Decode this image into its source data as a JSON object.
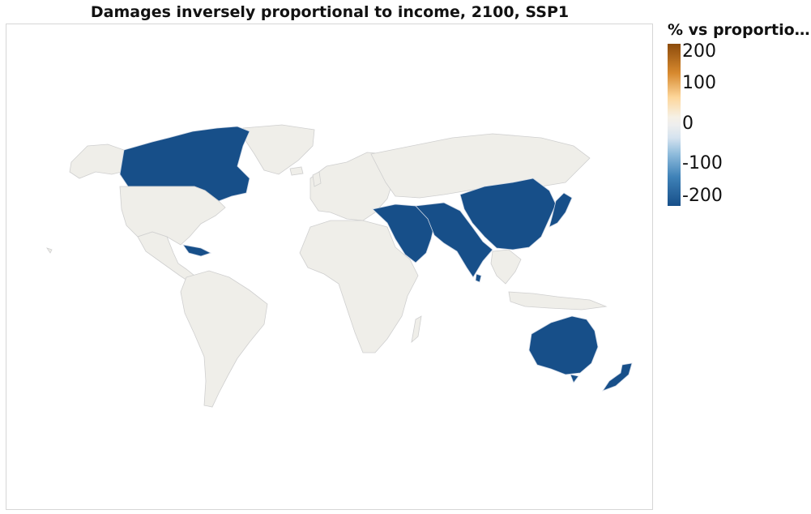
{
  "title": "Damages inversely proportional to income, 2100, SSP1",
  "legend": {
    "title": "% vs proportio…",
    "ticks": [
      "200",
      "100",
      "0",
      "-100",
      "-200"
    ],
    "colors": {
      "high": "#8c4b0c",
      "mid": "#eeeeee",
      "low": "#174f89"
    }
  },
  "map": {
    "type": "choropleth",
    "base_color": "#efeee9",
    "highlighted_color": "#174f89",
    "highlighted_regions": [
      "Canada",
      "Caribbean",
      "Middle East",
      "Arabian Peninsula",
      "Central Asia",
      "South Asia",
      "China",
      "Japan",
      "Korea",
      "Australia",
      "New Zealand"
    ]
  }
}
